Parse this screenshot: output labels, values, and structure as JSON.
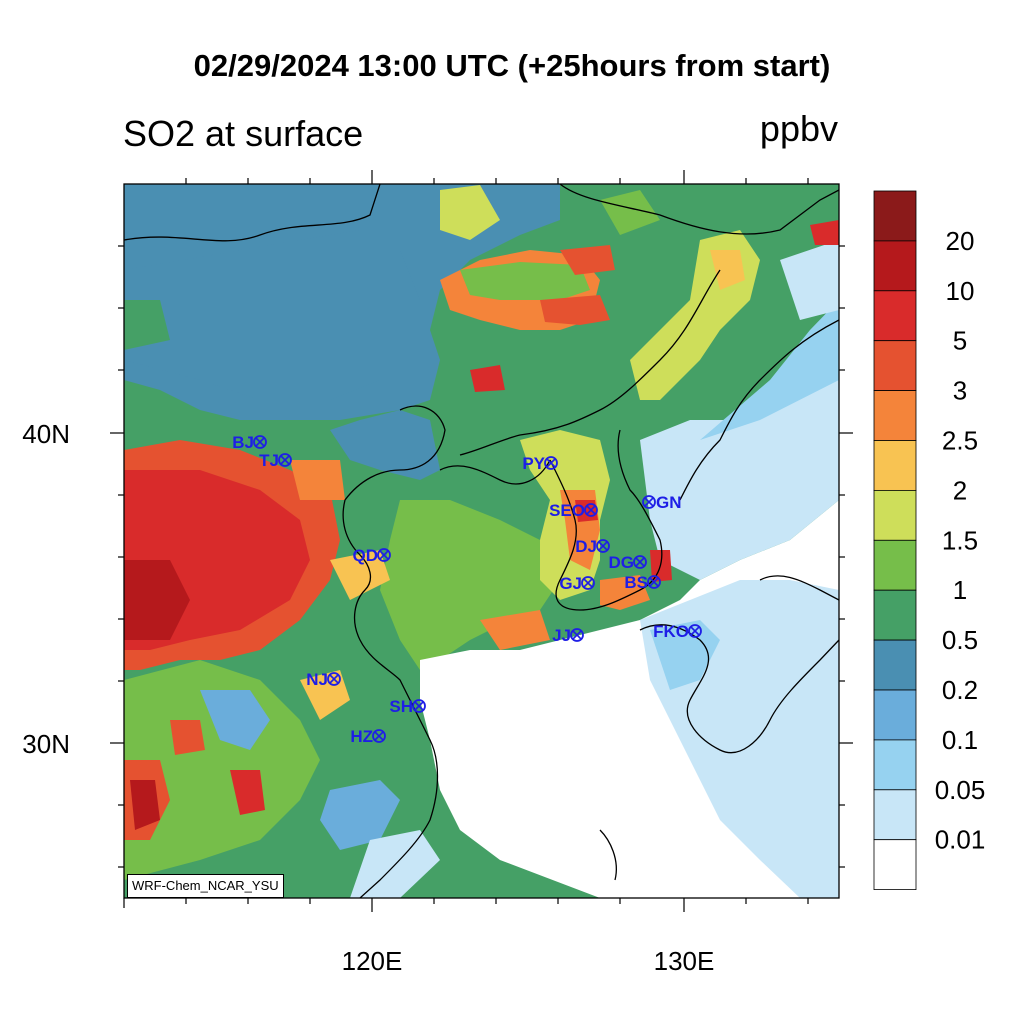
{
  "title": "02/29/2024 13:00 UTC (+25hours from start)",
  "left_title": "SO2 at surface",
  "units": "ppbv",
  "credit": "WRF-Chem_NCAR_YSU",
  "lat_labels": [
    "40N",
    "30N"
  ],
  "lon_labels": [
    "120E",
    "130E"
  ],
  "colorbar": {
    "levels": [
      "20",
      "10",
      "5",
      "3",
      "2.5",
      "2",
      "1.5",
      "1",
      "0.5",
      "0.2",
      "0.1",
      "0.05",
      "0.01"
    ],
    "colors": [
      "#8b1a1a",
      "#b5191c",
      "#d92b2b",
      "#e55230",
      "#f4843a",
      "#f8c352",
      "#cede5a",
      "#76be4a",
      "#45a066",
      "#4a8fb2",
      "#6aaddb",
      "#96d2f0",
      "#c8e6f7",
      "#ffffff"
    ]
  },
  "cities": [
    {
      "code": "BJ"
    },
    {
      "code": "TJ"
    },
    {
      "code": "PY"
    },
    {
      "code": "SEO"
    },
    {
      "code": "GN"
    },
    {
      "code": "QD"
    },
    {
      "code": "DJ"
    },
    {
      "code": "DG"
    },
    {
      "code": "GJ"
    },
    {
      "code": "BS"
    },
    {
      "code": "JJ"
    },
    {
      "code": "FKO"
    },
    {
      "code": "NJ"
    },
    {
      "code": "SH"
    },
    {
      "code": "HZ"
    }
  ]
}
